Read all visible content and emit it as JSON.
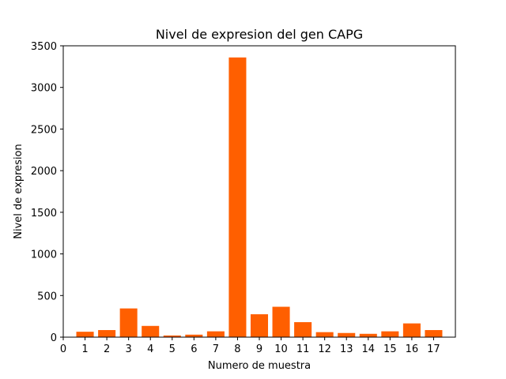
{
  "chart_data": {
    "type": "bar",
    "title": "Nivel de expresion del gen CAPG",
    "xlabel": "Numero de muestra",
    "ylabel": "Nivel de expresion",
    "x": [
      1,
      2,
      3,
      4,
      5,
      6,
      7,
      8,
      9,
      10,
      11,
      12,
      13,
      14,
      15,
      16,
      17
    ],
    "values": [
      65,
      85,
      345,
      135,
      20,
      30,
      70,
      3360,
      275,
      365,
      180,
      60,
      50,
      40,
      70,
      165,
      85
    ],
    "xticks": [
      0,
      1,
      2,
      3,
      4,
      5,
      6,
      7,
      8,
      9,
      10,
      11,
      12,
      13,
      14,
      15,
      16,
      17
    ],
    "yticks": [
      0,
      500,
      1000,
      1500,
      2000,
      2500,
      3000,
      3500
    ],
    "xlim": [
      0,
      18
    ],
    "ylim": [
      0,
      3500
    ],
    "grid": false,
    "bar_color": "#ff5f00"
  }
}
